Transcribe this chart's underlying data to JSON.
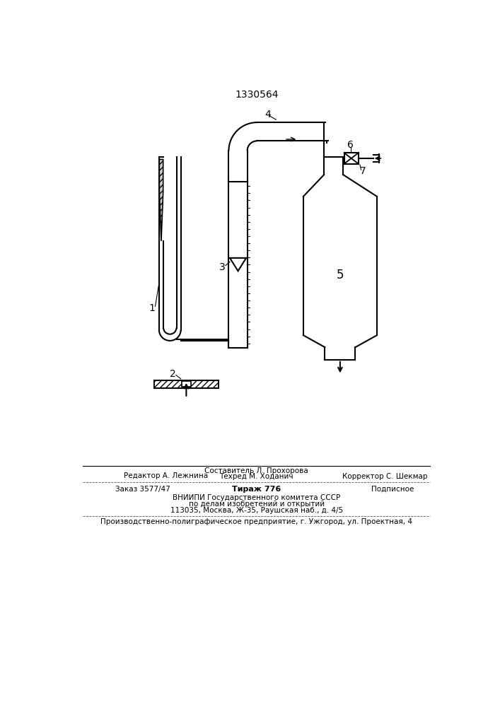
{
  "title": "1330564",
  "bg_color": "#ffffff",
  "line_color": "#000000",
  "label_1": "1",
  "label_2": "2",
  "label_3": "3",
  "label_4": "4",
  "label_5": "5",
  "label_6": "6",
  "label_7": "7",
  "footer_line1": "Составитель Л. Прохорова",
  "footer_editor": "Редактор А. Лежнина",
  "footer_techred": "Техред М. Ходанич",
  "footer_corrector": "Корректор С. Шекмар",
  "footer_order": "Заказ 3577/47",
  "footer_tirazh": "Тираж 776",
  "footer_podpisnoe": "Подписное",
  "footer_vniip1": "ВНИИПИ Государственного комитета СССР",
  "footer_vniip2": "по делам изобретений и открытий",
  "footer_vniip3": "113035, Москва, Ж-35, Раушская наб., д. 4/5",
  "footer_prod": "Производственно-полиграфическое предприятие, г. Ужгород, ул. Проектная, 4"
}
